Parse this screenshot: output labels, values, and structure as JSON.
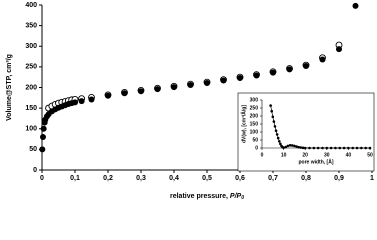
{
  "chart_data": [
    {
      "type": "scatter",
      "x_label": {
        "text": "relative pressure,  ",
        "var": "P/P",
        "sub": "0"
      },
      "y_label": "Volume@STP, cm³/g",
      "xlim": [
        0,
        1
      ],
      "xticks": [
        0,
        {
          "value": 0.1,
          "label": "0,1"
        },
        {
          "value": 0.2,
          "label": "0,2"
        },
        {
          "value": 0.3,
          "label": "0,3"
        },
        {
          "value": 0.4,
          "label": "0,4"
        },
        {
          "value": 0.5,
          "label": "0,5"
        },
        {
          "value": 0.6,
          "label": "0,6"
        },
        {
          "value": 0.7,
          "label": "0,7"
        },
        {
          "value": 0.8,
          "label": "0,8"
        },
        {
          "value": 0.9,
          "label": "0,9"
        },
        1
      ],
      "ylim": [
        0,
        400
      ],
      "yticks": [
        0,
        50,
        100,
        150,
        200,
        250,
        300,
        350,
        400
      ],
      "series": [
        {
          "marker": "open",
          "color": "#000000",
          "x": [
            0.02,
            0.03,
            0.04,
            0.05,
            0.06,
            0.07,
            0.08,
            0.09,
            0.1,
            0.12,
            0.15,
            0.2,
            0.25,
            0.3,
            0.35,
            0.4,
            0.45,
            0.5,
            0.55,
            0.6,
            0.65,
            0.7,
            0.75,
            0.8,
            0.85,
            0.9
          ],
          "values": [
            150,
            155,
            159,
            162,
            164,
            166,
            168,
            170,
            171,
            173,
            176,
            182,
            188,
            193,
            198,
            203,
            208,
            213,
            219,
            225,
            231,
            238,
            246,
            254,
            272,
            303
          ]
        },
        {
          "marker": "filled",
          "color": "#000000",
          "x": [
            0.001,
            0.003,
            0.005,
            0.008,
            0.01,
            0.015,
            0.02,
            0.03,
            0.04,
            0.05,
            0.06,
            0.07,
            0.08,
            0.09,
            0.1,
            0.12,
            0.15,
            0.2,
            0.25,
            0.3,
            0.35,
            0.4,
            0.45,
            0.5,
            0.55,
            0.6,
            0.65,
            0.7,
            0.75,
            0.8,
            0.85,
            0.9,
            0.95
          ],
          "values": [
            50,
            80,
            100,
            115,
            122,
            130,
            135,
            142,
            147,
            151,
            154,
            157,
            160,
            162,
            164,
            167,
            171,
            180,
            186,
            191,
            196,
            201,
            206,
            211,
            217,
            223,
            229,
            236,
            244,
            252,
            268,
            293,
            398
          ]
        }
      ]
    },
    {
      "type": "line",
      "x_label": "pore width, [Å]",
      "y_label": "dV(w), [cm³/Å/g]",
      "xlim": [
        0,
        50
      ],
      "xticks": [
        0,
        10,
        20,
        30,
        40,
        50
      ],
      "ylim": [
        0,
        300
      ],
      "yticks": [
        0,
        50,
        100,
        150,
        200,
        250,
        300
      ],
      "series": [
        {
          "marker": "filled",
          "color": "#000000",
          "x": [
            4,
            4.5,
            5,
            5.5,
            6,
            6.5,
            7,
            7.5,
            8,
            8.5,
            9,
            9.5,
            10,
            11,
            12,
            13,
            14,
            15,
            16,
            17,
            18,
            19,
            20,
            22,
            24,
            26,
            28,
            30,
            32,
            34,
            36,
            38,
            40,
            42,
            44,
            46,
            48,
            50
          ],
          "values": [
            265,
            230,
            195,
            165,
            135,
            108,
            85,
            62,
            42,
            26,
            13,
            5,
            2,
            6,
            13,
            17,
            16,
            13,
            9,
            5,
            3,
            1,
            0,
            0,
            0,
            0,
            0,
            0,
            0,
            0,
            0,
            0,
            0,
            0,
            0,
            0,
            0,
            0
          ]
        }
      ]
    }
  ]
}
